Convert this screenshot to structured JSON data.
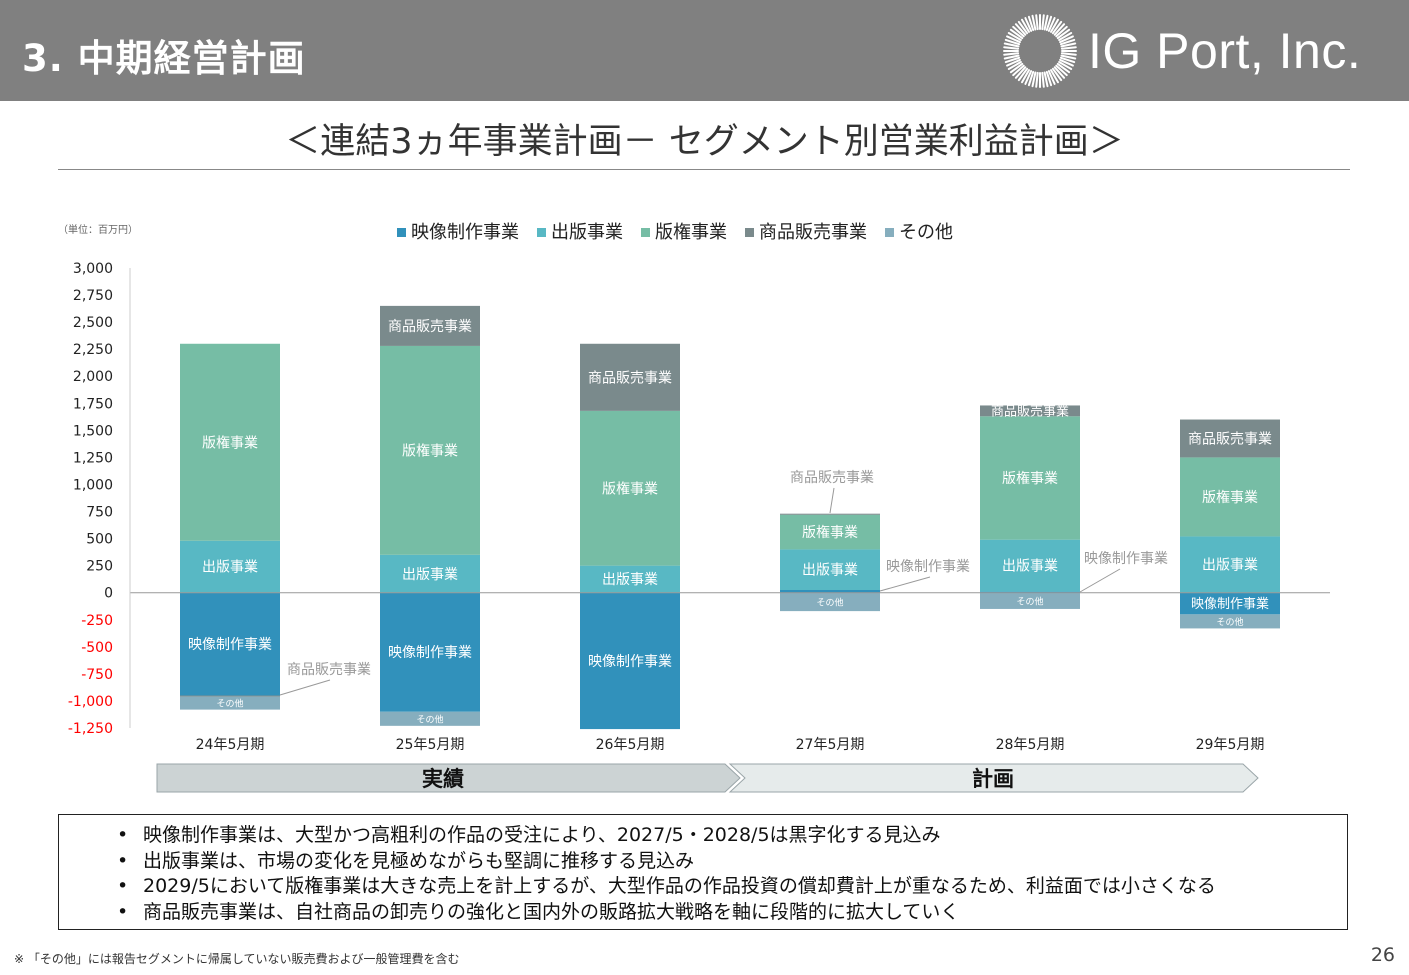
{
  "header": {
    "section_title": "3. 中期経営計画",
    "logo_text": "IG Port, Inc."
  },
  "page_heading": "＜連結3ヵ年事業計画－ セグメント別営業利益計画＞",
  "chart_data": {
    "type": "bar",
    "stacked": true,
    "unit_label": "（単位：百万円）",
    "categories": [
      "24年5月期",
      "25年5月期",
      "26年5月期",
      "27年5月期",
      "28年5月期",
      "29年5月期"
    ],
    "ylim": [
      -1250,
      3000
    ],
    "yticks": [
      3000,
      2750,
      2500,
      2250,
      2000,
      1750,
      1500,
      1250,
      1000,
      750,
      500,
      250,
      0,
      -250,
      -500,
      -750,
      -1000,
      -1250
    ],
    "ytick_labels": [
      "3,000",
      "2,750",
      "2,500",
      "2,250",
      "2,000",
      "1,750",
      "1,500",
      "1,250",
      "1,000",
      "750",
      "500",
      "250",
      "0",
      "-250",
      "-500",
      "-750",
      "-1,000",
      "-1,250"
    ],
    "negative_tick_color": "#ff0000",
    "legend_position": "top",
    "series": [
      {
        "name": "映像制作事業",
        "color": "#3191bb",
        "values": [
          -950,
          -1100,
          -1260,
          25,
          10,
          -200
        ]
      },
      {
        "name": "出版事業",
        "color": "#58b8c4",
        "values": [
          480,
          350,
          250,
          375,
          480,
          520
        ]
      },
      {
        "name": "版権事業",
        "color": "#76bda5",
        "values": [
          1820,
          1930,
          1430,
          320,
          1140,
          730
        ]
      },
      {
        "name": "商品販売事業",
        "color": "#7a8a8c",
        "values": [
          -10,
          370,
          620,
          10,
          100,
          350
        ]
      },
      {
        "name": "その他",
        "color": "#86aebe",
        "values": [
          -120,
          -130,
          0,
          -170,
          -150,
          -130
        ]
      }
    ],
    "period_bar": {
      "actual_label": "実績",
      "plan_label": "計画"
    }
  },
  "notes": [
    "映像制作事業は、大型かつ高粗利の作品の受注により、2027/5・2028/5は黒字化する見込み",
    "出版事業は、市場の変化を見極めながらも堅調に推移する見込み",
    "2029/5において版権事業は大きな売上を計上するが、大型作品の作品投資の償却費計上が重なるため、利益面では小さくなる",
    "商品販売事業は、自社商品の卸売りの強化と国内外の販路拡大戦略を軸に段階的に拡大していく"
  ],
  "footnote": "※ 「その他」には報告セグメントに帰属していない販売費および一般管理費を含む",
  "page_number": "26"
}
